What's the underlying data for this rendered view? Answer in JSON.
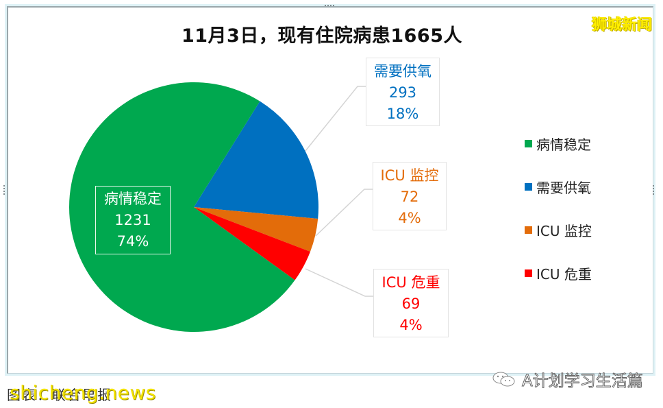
{
  "title": "11月3日，现有住院病患1665人",
  "brand_watermark": "狮城新闻",
  "colors": {
    "stable": "#00a84f",
    "oxygen": "#0070c0",
    "icu_monitor": "#e36c0a",
    "icu_critical": "#ff0000"
  },
  "callouts": {
    "stable": {
      "label": "病情稳定",
      "value": "1231",
      "pct": "74%"
    },
    "oxygen": {
      "label": "需要供氧",
      "value": "293",
      "pct": "18%"
    },
    "icu_monitor": {
      "label": "ICU 监控",
      "value": "72",
      "pct": "4%"
    },
    "icu_critical": {
      "label": "ICU 危重",
      "value": "69",
      "pct": "4%"
    }
  },
  "legend": {
    "items": [
      {
        "label": "病情稳定",
        "color": "#00a84f"
      },
      {
        "label": "需要供氧",
        "color": "#0070c0"
      },
      {
        "label": "ICU 监控",
        "color": "#e36c0a"
      },
      {
        "label": "ICU 危重",
        "color": "#ff0000"
      }
    ]
  },
  "footer": {
    "source": "图表：联合早报",
    "watermark": "shicheng.news",
    "wechat_account": "A计划学习生活篇"
  },
  "chart_data": {
    "type": "pie",
    "title": "11月3日，现有住院病患1665人",
    "categories": [
      "病情稳定",
      "需要供氧",
      "ICU 监控",
      "ICU 危重"
    ],
    "values": [
      1231,
      293,
      72,
      69
    ],
    "percentages": [
      74,
      18,
      4,
      4
    ],
    "total": 1665,
    "colors": [
      "#00a84f",
      "#0070c0",
      "#e36c0a",
      "#ff0000"
    ],
    "legend_position": "right",
    "start_angle_deg_from_top": 32
  }
}
